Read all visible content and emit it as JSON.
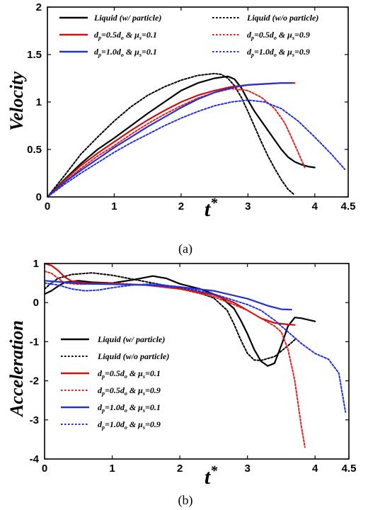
{
  "chart_data": [
    {
      "type": "line",
      "caption": "(a)",
      "ylabel": "Velocity",
      "xlabel_main": "t",
      "xlabel_sup": "*",
      "xlim": [
        0,
        4.5
      ],
      "ylim": [
        0,
        2
      ],
      "xticks": [
        "0",
        "1",
        "2",
        "3",
        "4",
        "4.5"
      ],
      "xtick_values": [
        0,
        1,
        2,
        3,
        4,
        4.5
      ],
      "yticks": [
        "0",
        "0.5",
        "1",
        "1.5",
        "2"
      ],
      "ytick_values": [
        0,
        0.5,
        1,
        1.5,
        2
      ],
      "grid": false,
      "legend_position": "top",
      "legend_columns": 2,
      "series": [
        {
          "name": "Liquid (w/ particle)",
          "label_parts": [
            [
              "Liquid (w/ particle)",
              ""
            ]
          ],
          "color": "#000000",
          "dash": "solid",
          "x": [
            0,
            0.25,
            0.5,
            0.75,
            1.0,
            1.25,
            1.5,
            1.75,
            2.0,
            2.25,
            2.5,
            2.7,
            2.8,
            2.9,
            3.0,
            3.1,
            3.2,
            3.3,
            3.4,
            3.5,
            3.6,
            3.7,
            3.8,
            3.9,
            4.0
          ],
          "y": [
            0,
            0.18,
            0.35,
            0.5,
            0.62,
            0.75,
            0.88,
            1.0,
            1.12,
            1.2,
            1.25,
            1.27,
            1.24,
            1.15,
            1.02,
            0.9,
            0.8,
            0.7,
            0.6,
            0.5,
            0.42,
            0.37,
            0.34,
            0.32,
            0.31
          ]
        },
        {
          "name": "Liquid (w/o particle)",
          "label_parts": [
            [
              "Liquid (w/o particle)",
              ""
            ]
          ],
          "color": "#000000",
          "dash": "dot",
          "x": [
            0,
            0.25,
            0.5,
            0.75,
            1.0,
            1.25,
            1.5,
            1.75,
            2.0,
            2.25,
            2.5,
            2.6,
            2.7,
            2.8,
            2.9,
            3.0,
            3.1,
            3.2,
            3.3,
            3.4,
            3.5,
            3.6,
            3.7
          ],
          "y": [
            0,
            0.22,
            0.45,
            0.63,
            0.8,
            0.95,
            1.07,
            1.16,
            1.23,
            1.28,
            1.3,
            1.29,
            1.25,
            1.17,
            1.05,
            0.9,
            0.74,
            0.58,
            0.43,
            0.3,
            0.18,
            0.08,
            0.02
          ]
        },
        {
          "name": "dp=0.5do & μs=0.1",
          "label_parts": [
            [
              "d",
              ""
            ],
            [
              "p",
              "sub"
            ],
            [
              "=0.5d",
              ""
            ],
            [
              "o",
              "sub"
            ],
            [
              " & μ",
              ""
            ],
            [
              "s",
              "sub"
            ],
            [
              "=0.1",
              ""
            ]
          ],
          "color": "#cc1111",
          "dash": "solid",
          "x": [
            0,
            0.25,
            0.5,
            0.75,
            1.0,
            1.25,
            1.5,
            1.75,
            2.0,
            2.25,
            2.5,
            2.75,
            3.0,
            3.25,
            3.5,
            3.7
          ],
          "y": [
            0,
            0.17,
            0.33,
            0.46,
            0.58,
            0.7,
            0.81,
            0.91,
            1.0,
            1.07,
            1.12,
            1.16,
            1.18,
            1.19,
            1.2,
            1.2
          ]
        },
        {
          "name": "dp=0.5do & μs=0.9",
          "label_parts": [
            [
              "d",
              ""
            ],
            [
              "p",
              "sub"
            ],
            [
              "=0.5d",
              ""
            ],
            [
              "o",
              "sub"
            ],
            [
              " & μ",
              ""
            ],
            [
              "s",
              "sub"
            ],
            [
              "=0.9",
              ""
            ]
          ],
          "color": "#dd2222",
          "dash": "dot",
          "x": [
            0,
            0.25,
            0.5,
            0.75,
            1.0,
            1.25,
            1.5,
            1.75,
            2.0,
            2.25,
            2.5,
            2.75,
            3.0,
            3.2,
            3.4,
            3.55,
            3.65,
            3.75,
            3.85
          ],
          "y": [
            0,
            0.15,
            0.3,
            0.43,
            0.54,
            0.66,
            0.77,
            0.87,
            0.96,
            1.04,
            1.1,
            1.14,
            1.12,
            1.05,
            0.93,
            0.78,
            0.63,
            0.47,
            0.31
          ]
        },
        {
          "name": "dp=1.0do & μs=0.1",
          "label_parts": [
            [
              "d",
              ""
            ],
            [
              "p",
              "sub"
            ],
            [
              "=1.0d",
              ""
            ],
            [
              "o",
              "sub"
            ],
            [
              " & μ",
              ""
            ],
            [
              "s",
              "sub"
            ],
            [
              "=0.1",
              ""
            ]
          ],
          "color": "#2233cc",
          "dash": "solid",
          "x": [
            0,
            0.25,
            0.5,
            0.75,
            1.0,
            1.25,
            1.5,
            1.75,
            2.0,
            2.25,
            2.5,
            2.75,
            3.0,
            3.25,
            3.5,
            3.65
          ],
          "y": [
            0,
            0.15,
            0.28,
            0.4,
            0.52,
            0.63,
            0.74,
            0.84,
            0.94,
            1.03,
            1.1,
            1.15,
            1.18,
            1.19,
            1.2,
            1.2
          ]
        },
        {
          "name": "dp=1.0do & μs=0.9",
          "label_parts": [
            [
              "d",
              ""
            ],
            [
              "p",
              "sub"
            ],
            [
              "=1.0d",
              ""
            ],
            [
              "o",
              "sub"
            ],
            [
              " & μ",
              ""
            ],
            [
              "s",
              "sub"
            ],
            [
              "=0.9",
              ""
            ]
          ],
          "color": "#2233dd",
          "dash": "dot",
          "x": [
            0,
            0.25,
            0.5,
            0.75,
            1.0,
            1.25,
            1.5,
            1.75,
            2.0,
            2.25,
            2.5,
            2.75,
            3.0,
            3.25,
            3.5,
            3.75,
            4.0,
            4.25,
            4.45
          ],
          "y": [
            0,
            0.13,
            0.25,
            0.36,
            0.47,
            0.57,
            0.66,
            0.75,
            0.83,
            0.9,
            0.96,
            1.0,
            1.02,
            1.0,
            0.93,
            0.8,
            0.63,
            0.45,
            0.29
          ]
        }
      ]
    },
    {
      "type": "line",
      "caption": "(b)",
      "ylabel": "Acceleration",
      "xlabel_main": "t",
      "xlabel_sup": "*",
      "xlim": [
        0,
        4.5
      ],
      "ylim": [
        -4,
        1
      ],
      "xticks": [
        "0",
        "1",
        "2",
        "3",
        "4",
        "4.5"
      ],
      "xtick_values": [
        0,
        1,
        2,
        3,
        4,
        4.5
      ],
      "yticks": [
        "-4",
        "-3",
        "-2",
        "-1",
        "0",
        "1"
      ],
      "ytick_values": [
        -4,
        -3,
        -2,
        -1,
        0,
        1
      ],
      "grid": false,
      "legend_position": "left",
      "legend_columns": 1,
      "series": [
        {
          "name": "Liquid (w/ particle)",
          "label_parts": [
            [
              "Liquid (w/ particle)",
              ""
            ]
          ],
          "color": "#000000",
          "dash": "solid",
          "x": [
            0,
            0.1,
            0.2,
            0.3,
            0.5,
            0.7,
            1.0,
            1.3,
            1.6,
            1.8,
            2.0,
            2.3,
            2.6,
            2.8,
            2.9,
            3.0,
            3.1,
            3.2,
            3.3,
            3.4,
            3.5,
            3.6,
            3.7,
            3.8,
            4.0
          ],
          "y": [
            0.22,
            0.3,
            0.42,
            0.52,
            0.56,
            0.52,
            0.5,
            0.58,
            0.68,
            0.62,
            0.48,
            0.35,
            0.15,
            -0.15,
            -0.45,
            -0.8,
            -1.2,
            -1.5,
            -1.62,
            -1.55,
            -1.1,
            -0.6,
            -0.38,
            -0.4,
            -0.48
          ]
        },
        {
          "name": "Liquid (w/o particle)",
          "label_parts": [
            [
              "Liquid (w/o particle)",
              ""
            ]
          ],
          "color": "#000000",
          "dash": "dot",
          "x": [
            0,
            0.1,
            0.2,
            0.4,
            0.7,
            1.0,
            1.3,
            1.6,
            1.9,
            2.2,
            2.5,
            2.7,
            2.8,
            2.9,
            3.0,
            3.1,
            3.2,
            3.4,
            3.6,
            3.7
          ],
          "y": [
            0.35,
            0.5,
            0.62,
            0.72,
            0.76,
            0.7,
            0.6,
            0.5,
            0.4,
            0.3,
            0.12,
            -0.2,
            -0.55,
            -0.95,
            -1.3,
            -1.47,
            -1.48,
            -1.38,
            -1.1,
            -0.95
          ]
        },
        {
          "name": "dp=0.5do & μs=0.1",
          "label_parts": [
            [
              "d",
              ""
            ],
            [
              "p",
              "sub"
            ],
            [
              "=0.5d",
              ""
            ],
            [
              "o",
              "sub"
            ],
            [
              " & μ",
              ""
            ],
            [
              "s",
              "sub"
            ],
            [
              "=0.1",
              ""
            ]
          ],
          "color": "#cc1111",
          "dash": "solid",
          "x": [
            0,
            0.1,
            0.2,
            0.3,
            0.4,
            0.6,
            1.0,
            1.5,
            2.0,
            2.5,
            2.8,
            3.0,
            3.2,
            3.4,
            3.6,
            3.7
          ],
          "y": [
            1.0,
            0.95,
            0.82,
            0.65,
            0.55,
            0.5,
            0.48,
            0.45,
            0.35,
            0.2,
            0.0,
            -0.2,
            -0.4,
            -0.52,
            -0.56,
            -0.57
          ]
        },
        {
          "name": "dp=0.5do & μs=0.9",
          "label_parts": [
            [
              "d",
              ""
            ],
            [
              "p",
              "sub"
            ],
            [
              "=0.5d",
              ""
            ],
            [
              "o",
              "sub"
            ],
            [
              " & μ",
              ""
            ],
            [
              "s",
              "sub"
            ],
            [
              "=0.9",
              ""
            ]
          ],
          "color": "#dd2222",
          "dash": "dot",
          "x": [
            0,
            0.1,
            0.2,
            0.3,
            0.5,
            1.0,
            1.5,
            2.0,
            2.5,
            2.8,
            3.0,
            3.2,
            3.4,
            3.5,
            3.6,
            3.7,
            3.75,
            3.8,
            3.85
          ],
          "y": [
            0.8,
            0.75,
            0.62,
            0.5,
            0.47,
            0.5,
            0.45,
            0.35,
            0.15,
            -0.05,
            -0.2,
            -0.4,
            -0.6,
            -0.75,
            -1.2,
            -2.0,
            -2.6,
            -3.2,
            -3.7
          ]
        },
        {
          "name": "dp=1.0do & μs=0.1",
          "label_parts": [
            [
              "d",
              ""
            ],
            [
              "p",
              "sub"
            ],
            [
              "=1.0d",
              ""
            ],
            [
              "o",
              "sub"
            ],
            [
              " & μ",
              ""
            ],
            [
              "s",
              "sub"
            ],
            [
              "=0.1",
              ""
            ]
          ],
          "color": "#2233cc",
          "dash": "solid",
          "x": [
            0,
            0.3,
            0.6,
            1.0,
            1.5,
            2.0,
            2.5,
            3.0,
            3.3,
            3.5,
            3.65
          ],
          "y": [
            0.56,
            0.52,
            0.48,
            0.47,
            0.45,
            0.4,
            0.3,
            0.1,
            -0.08,
            -0.17,
            -0.18
          ]
        },
        {
          "name": "dp=1.0do & μs=0.9",
          "label_parts": [
            [
              "d",
              ""
            ],
            [
              "p",
              "sub"
            ],
            [
              "=1.0d",
              ""
            ],
            [
              "o",
              "sub"
            ],
            [
              " & μ",
              ""
            ],
            [
              "s",
              "sub"
            ],
            [
              "=0.9",
              ""
            ]
          ],
          "color": "#2233dd",
          "dash": "dot",
          "x": [
            0,
            0.2,
            0.4,
            0.6,
            0.8,
            1.0,
            1.3,
            1.6,
            2.0,
            2.5,
            3.0,
            3.2,
            3.4,
            3.6,
            3.8,
            4.0,
            4.2,
            4.35,
            4.45
          ],
          "y": [
            0.5,
            0.45,
            0.35,
            0.3,
            0.32,
            0.38,
            0.45,
            0.48,
            0.4,
            0.22,
            -0.05,
            -0.2,
            -0.45,
            -0.75,
            -1.05,
            -1.3,
            -1.45,
            -1.8,
            -2.8
          ]
        }
      ]
    }
  ]
}
